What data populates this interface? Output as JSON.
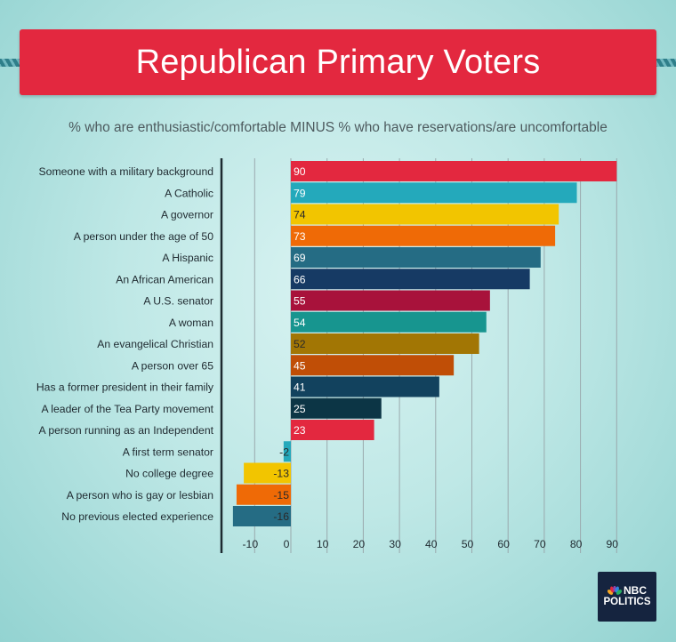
{
  "chart_data": {
    "type": "bar",
    "orientation": "horizontal",
    "title": "Republican Primary Voters",
    "subtitle": "% who are enthusiastic/comfortable MINUS % who have reservations/are uncomfortable",
    "categories": [
      "Someone with a military background",
      "A Catholic",
      "A governor",
      "A person under the age of 50",
      "A Hispanic",
      "An African American",
      "A U.S. senator",
      "A woman",
      "An evangelical Christian",
      "A person over 65",
      "Has a former president in their family",
      "A leader of the Tea Party movement",
      "A person running as an Independent",
      "A first term senator",
      "No college degree",
      "A person who is gay or lesbian",
      "No previous elected experience"
    ],
    "values": [
      90,
      79,
      74,
      73,
      69,
      66,
      55,
      54,
      52,
      45,
      41,
      25,
      23,
      -2,
      -13,
      -15,
      -16
    ],
    "value_labels": [
      "90",
      "79",
      "74",
      "73",
      "69",
      "66",
      "55",
      "54",
      "52",
      "45",
      "41",
      "25",
      "23",
      "-2",
      "-13",
      "-15",
      "-16"
    ],
    "colors": [
      "#e3283f",
      "#24a9bb",
      "#f2c500",
      "#ef6a06",
      "#256c84",
      "#163a64",
      "#a8123b",
      "#17958f",
      "#a27604",
      "#c04e06",
      "#12425e",
      "#0c3545",
      "#e3283f",
      "#24a9bb",
      "#f2c500",
      "#ef6a06",
      "#256c84"
    ],
    "xticks": [
      -10,
      0,
      10,
      20,
      30,
      40,
      50,
      60,
      70,
      80,
      90
    ],
    "xtick_labels": [
      "-10",
      "0",
      "10",
      "20",
      "30",
      "40",
      "50",
      "60",
      "70",
      "80",
      "90"
    ],
    "xlim": [
      -16,
      91
    ],
    "grid": true
  },
  "logo": {
    "line1": "NBC",
    "line2": "POLITICS"
  }
}
